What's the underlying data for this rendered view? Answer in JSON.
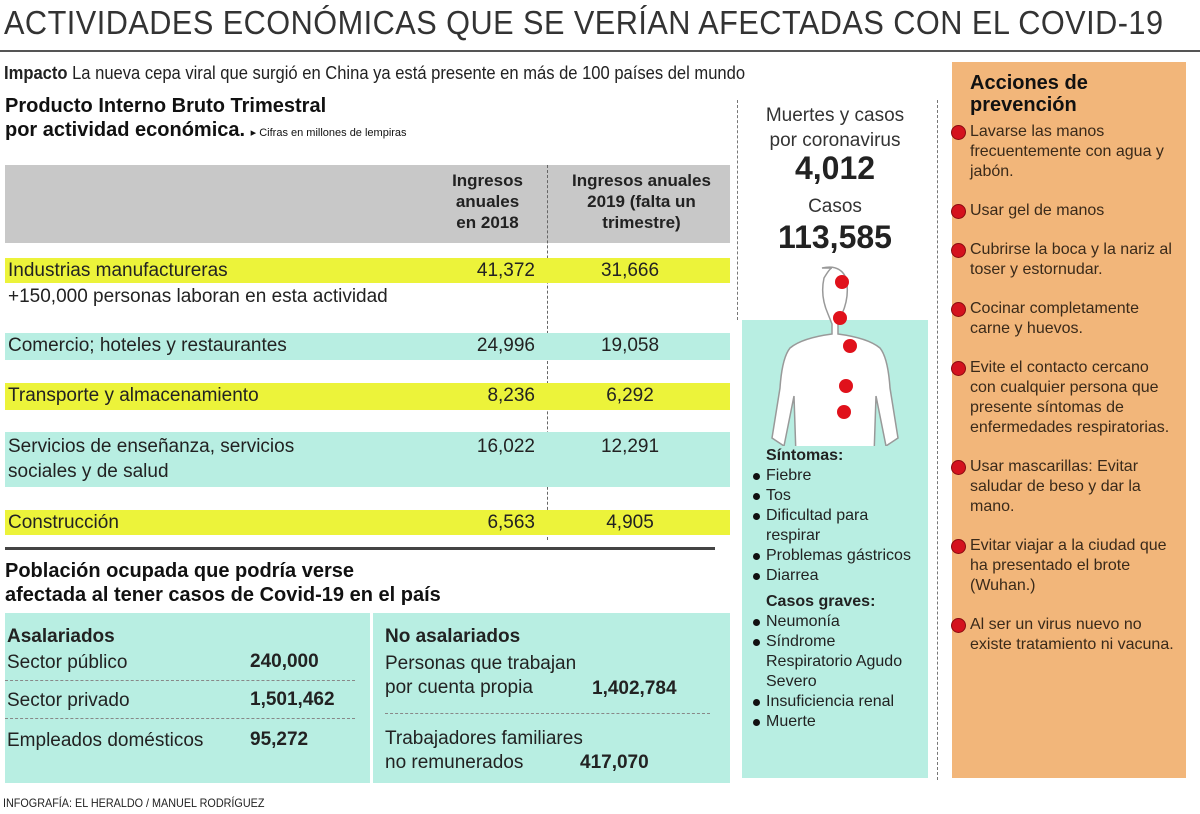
{
  "title": "ACTIVIDADES ECONÓMICAS QUE SE VERÍAN AFECTADAS CON EL COVID-19",
  "impact": {
    "label": "Impacto",
    "text": " La nueva cepa viral que surgió en China ya está presente en más de 100 países del mundo"
  },
  "pib": {
    "title1": "Producto Interno Bruto Trimestral",
    "title2": "por actividad económica.",
    "note": "▸ Cifras en millones de lempiras",
    "col1": [
      "Ingresos",
      "anuales",
      "en 2018"
    ],
    "col2": [
      "Ingresos anuales",
      "2019 (falta un",
      "trimestre)"
    ],
    "rows": [
      {
        "label": "Industrias manufactureras",
        "v2018": "41,372",
        "v2019": "31,666",
        "note": "+150,000 personas laboran en esta actividad"
      },
      {
        "label": "Comercio; hoteles y restaurantes",
        "v2018": "24,996",
        "v2019": "19,058"
      },
      {
        "label": "Transporte y almacenamiento",
        "v2018": "8,236",
        "v2019": "6,292"
      },
      {
        "label": "Servicios de enseñanza, servicios",
        "label2": "sociales y de salud",
        "v2018": "16,022",
        "v2019": "12,291"
      },
      {
        "label": "Construcción",
        "v2018": "6,563",
        "v2019": "4,905"
      }
    ]
  },
  "poblacion": {
    "title1": "Población ocupada que podría verse",
    "title2": "afectada al tener casos de Covid-19 en el país",
    "asalariados": {
      "title": "Asalariados",
      "items": [
        {
          "label": "Sector público",
          "value": "240,000"
        },
        {
          "label": "Sector privado",
          "value": "1,501,462"
        },
        {
          "label": "Empleados domésticos",
          "value": "95,272"
        }
      ]
    },
    "no_asalariados": {
      "title": "No asalariados",
      "items": [
        {
          "label1": "Personas que trabajan",
          "label2": "por cuenta propia",
          "value": "1,402,784"
        },
        {
          "label1": "Trabajadores familiares",
          "label2": "no remunerados",
          "value": "417,070"
        }
      ]
    }
  },
  "stats": {
    "heading1": "Muertes y casos",
    "heading2": "por coronavirus",
    "deaths": "4,012",
    "cases_label": "Casos",
    "cases": "113,585"
  },
  "sintomas": {
    "title": "Síntomas:",
    "items": [
      "Fiebre",
      "Tos",
      "Dificultad para respirar",
      "Problemas gástricos",
      "Diarrea"
    ]
  },
  "graves": {
    "title": "Casos graves:",
    "items": [
      "Neumonía",
      "Síndrome Respiratorio Agudo Severo",
      "Insuficiencia renal",
      "Muerte"
    ]
  },
  "prevencion": {
    "title1": "Acciones de",
    "title2": "prevención",
    "items": [
      "Lavarse las manos frecuentemente con agua y jabón.",
      "Usar gel de manos",
      "Cubrirse la boca y la nariz al toser y estornudar.",
      "Cocinar completamente carne y huevos.",
      "Evite el contacto cercano con cualquier persona que presente síntomas de enfermedades respiratorias.",
      "Usar mascarillas: Evitar saludar de beso y dar la mano.",
      "Evitar viajar a la ciudad que ha presentado el brote (Wuhan.)",
      "Al ser un virus nuevo no existe tratamiento ni vacuna."
    ]
  },
  "footer": "INFOGRAFÍA: EL HERALDO / MANUEL RODRÍGUEZ",
  "colors": {
    "highlight_yellow": "#ecf33a",
    "teal": "#b8eee2",
    "orange": "#f2b67a",
    "red_dot": "#d4121e"
  }
}
